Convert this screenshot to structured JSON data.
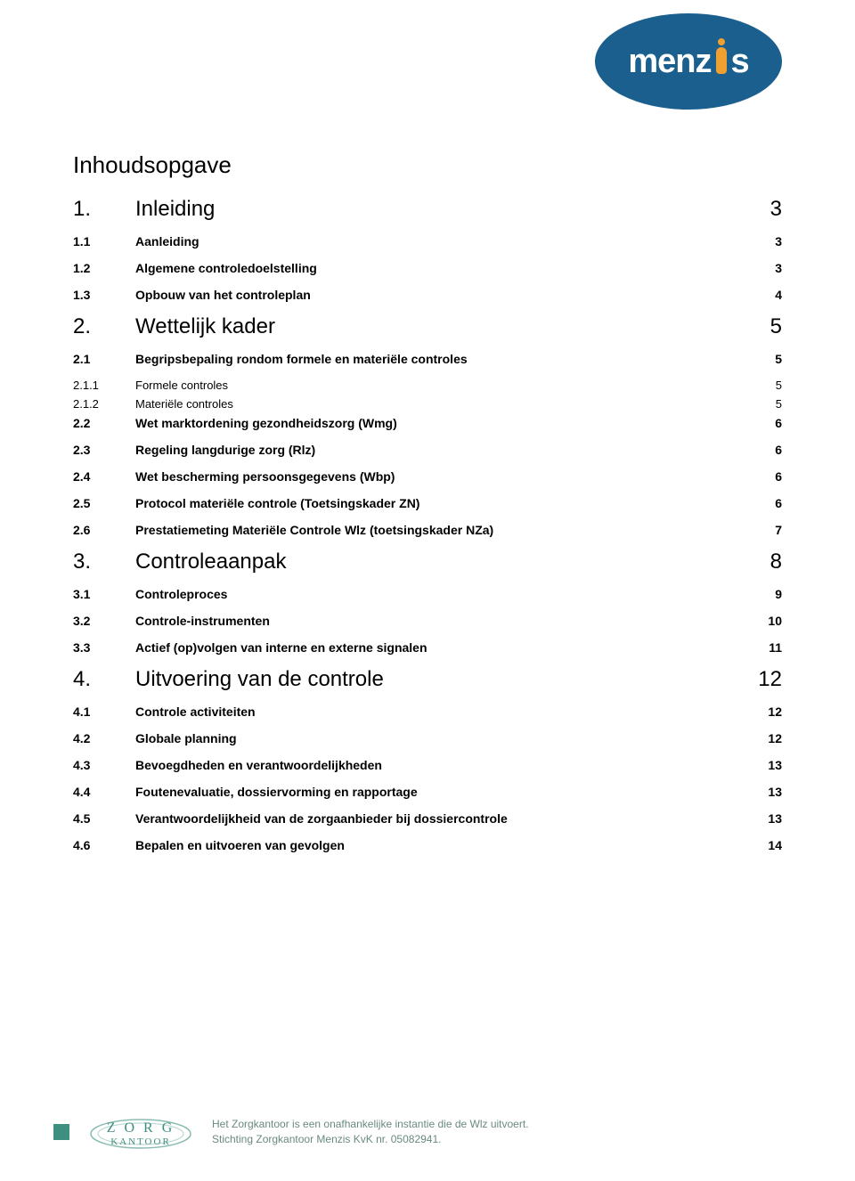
{
  "logo": {
    "brand": "menz",
    "brand_suffix": "s",
    "brand_color": "#1a5f8e",
    "text_color": "#ffffff",
    "accent_color": "#f0a030"
  },
  "doc_title": "Inhoudsopgave",
  "toc": [
    {
      "level": 1,
      "num": "1.",
      "title": "Inleiding",
      "page": "3"
    },
    {
      "level": 2,
      "num": "1.1",
      "title": "Aanleiding",
      "page": "3"
    },
    {
      "level": 2,
      "num": "1.2",
      "title": "Algemene controledoelstelling",
      "page": "3"
    },
    {
      "level": 2,
      "num": "1.3",
      "title": "Opbouw van het controleplan",
      "page": "4"
    },
    {
      "level": 1,
      "num": "2.",
      "title": "Wettelijk kader",
      "page": "5"
    },
    {
      "level": 2,
      "num": "2.1",
      "title": "Begripsbepaling rondom formele en materiële controles",
      "page": "5"
    },
    {
      "level": 3,
      "num": "2.1.1",
      "title": "Formele controles",
      "page": "5"
    },
    {
      "level": 3,
      "num": "2.1.2",
      "title": "Materiële controles",
      "page": "5"
    },
    {
      "level": 2,
      "num": "2.2",
      "title": "Wet marktordening gezondheidszorg (Wmg)",
      "page": "6"
    },
    {
      "level": 2,
      "num": "2.3",
      "title": "Regeling langdurige zorg (Rlz)",
      "page": "6"
    },
    {
      "level": 2,
      "num": "2.4",
      "title": "Wet bescherming persoonsgegevens (Wbp)",
      "page": "6"
    },
    {
      "level": 2,
      "num": "2.5",
      "title": "Protocol materiële controle (Toetsingskader ZN)",
      "page": "6"
    },
    {
      "level": 2,
      "num": "2.6",
      "title": "Prestatiemeting Materiële Controle Wlz (toetsingskader NZa)",
      "page": "7"
    },
    {
      "level": 1,
      "num": "3.",
      "title": "Controleaanpak",
      "page": "8"
    },
    {
      "level": 2,
      "num": "3.1",
      "title": "Controleproces",
      "page": "9"
    },
    {
      "level": 2,
      "num": "3.2",
      "title": "Controle-instrumenten",
      "page": "10"
    },
    {
      "level": 2,
      "num": "3.3",
      "title": "Actief (op)volgen van interne en externe signalen",
      "page": "11"
    },
    {
      "level": 1,
      "num": "4.",
      "title": "Uitvoering van de controle",
      "page": "12"
    },
    {
      "level": 2,
      "num": "4.1",
      "title": "Controle activiteiten",
      "page": "12"
    },
    {
      "level": 2,
      "num": "4.2",
      "title": "Globale planning",
      "page": "12"
    },
    {
      "level": 2,
      "num": "4.3",
      "title": "Bevoegdheden en verantwoordelijkheden",
      "page": "13"
    },
    {
      "level": 2,
      "num": "4.4",
      "title": "Foutenevaluatie, dossiervorming en rapportage",
      "page": "13"
    },
    {
      "level": 2,
      "num": "4.5",
      "title": "Verantwoordelijkheid van de zorgaanbieder bij dossiercontrole",
      "page": "13"
    },
    {
      "level": 2,
      "num": "4.6",
      "title": "Bepalen en uitvoeren van gevolgen",
      "page": "14"
    }
  ],
  "footer": {
    "logo_line1": "Z O R G",
    "logo_line2": "K A N T O O R",
    "logo_color": "#3d8f7f",
    "text_line1": "Het Zorgkantoor is een onafhankelijke instantie die de Wlz uitvoert.",
    "text_line2": "Stichting Zorgkantoor Menzis KvK nr. 05082941.",
    "text_color": "#6a8a7f"
  },
  "colors": {
    "background": "#ffffff",
    "text": "#000000"
  },
  "typography": {
    "body_font": "Arial",
    "title_fontsize": 26,
    "level1_fontsize": 24,
    "level2_fontsize": 14,
    "level3_fontsize": 13,
    "footer_fontsize": 12
  }
}
